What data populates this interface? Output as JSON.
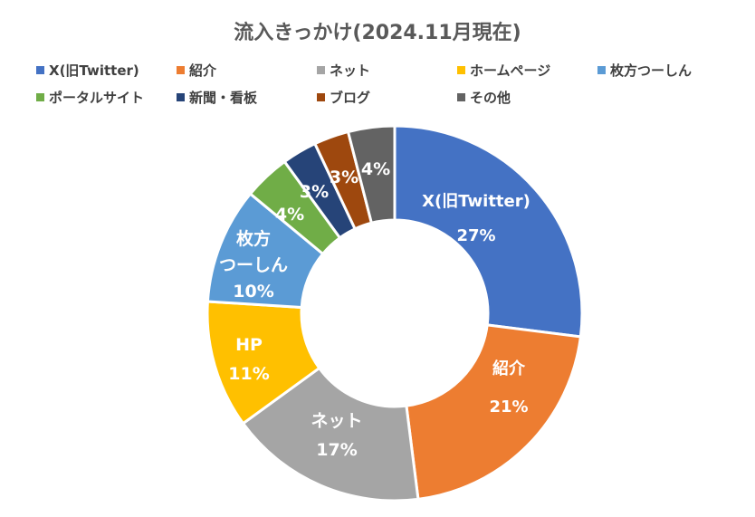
{
  "chart_data": {
    "type": "pie",
    "variant": "doughnut",
    "title": "流入きっかけ(2024.11月現在)",
    "categories": [
      "X(旧Twitter)",
      "紹介",
      "ネット",
      "ホームページ",
      "枚方つーしん",
      "ポータルサイト",
      "新聞・看板",
      "ブログ",
      "その他"
    ],
    "values": [
      27,
      21,
      17,
      11,
      10,
      4,
      3,
      3,
      4
    ],
    "colors": [
      "#4472C4",
      "#ED7D31",
      "#A5A5A5",
      "#FFC000",
      "#5B9BD5",
      "#70AD47",
      "#264478",
      "#9E480E",
      "#636363"
    ],
    "data_labels": [
      {
        "name": "X(旧Twitter)",
        "value": "27%"
      },
      {
        "name": "紹介",
        "value": "21%"
      },
      {
        "name": "ネット",
        "value": "17%"
      },
      {
        "name": "HP",
        "value": "11%"
      },
      {
        "name": "枚方つーしん",
        "value": "10%"
      },
      {
        "name": "",
        "value": "4%"
      },
      {
        "name": "",
        "value": "3%"
      },
      {
        "name": "",
        "value": "3%"
      },
      {
        "name": "",
        "value": "4%"
      }
    ],
    "legend_position": "top"
  }
}
